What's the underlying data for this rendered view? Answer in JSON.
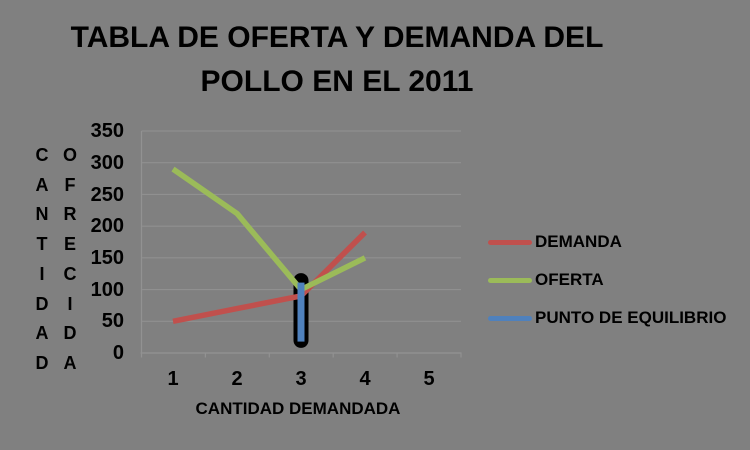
{
  "title": {
    "line1": "TABLA DE OFERTA Y DEMANDA DEL",
    "line2": "POLLO EN EL 2011",
    "full": "TABLA DE OFERTA Y DEMANDA DEL POLLO EN EL 2011"
  },
  "colors": {
    "background": "#808080",
    "grid": "#929292",
    "axis": "#929292",
    "text": "#000000",
    "demanda": "#C0504D",
    "oferta": "#9BBB59",
    "equilibrio": "#4F81BD",
    "bar_outline": "#000000"
  },
  "chart_data": {
    "type": "line",
    "title": "TABLA DE OFERTA Y DEMANDA DEL POLLO EN EL 2011",
    "xlabel": "CANTIDAD DEMANDADA",
    "ylabel": "CANTIDAD OFRECIDA",
    "ylabel_col1": "CANTIDAD",
    "ylabel_col2": "OFRECIDA",
    "categories": [
      1,
      2,
      3,
      4,
      5
    ],
    "xticks": [
      "1",
      "2",
      "3",
      "4",
      "5"
    ],
    "yticks": [
      350,
      300,
      250,
      200,
      150,
      100,
      50,
      0
    ],
    "ylim": [
      0,
      350
    ],
    "ytick_step": 50,
    "grid": true,
    "legend_position": "right",
    "series": [
      {
        "name": "DEMANDA",
        "color": "#C0504D",
        "values": [
          50,
          70,
          90,
          190,
          null
        ]
      },
      {
        "name": "OFERTA",
        "color": "#9BBB59",
        "values": [
          290,
          220,
          100,
          150,
          null
        ]
      },
      {
        "name": "PUNTO DE EQUILIBRIO",
        "color": "#4F81BD",
        "values": [
          null,
          null,
          100,
          null,
          null
        ]
      }
    ],
    "equilibrium_bar": {
      "x": 3,
      "color": "#4F81BD",
      "outline_color": "#000000",
      "blue_from": 18,
      "blue_to": 111,
      "outline_from": 8,
      "outline_to": 126
    }
  }
}
